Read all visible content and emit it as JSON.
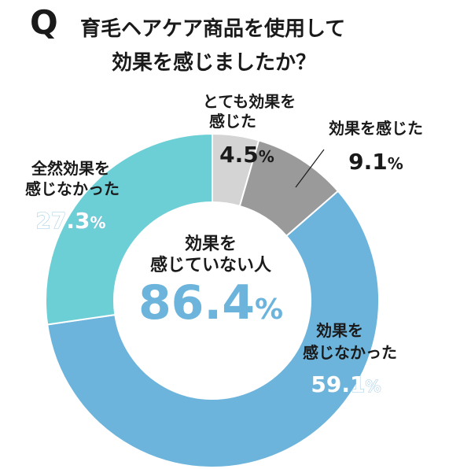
{
  "title": {
    "q": "Q",
    "line1": "育毛ヘアケア商品を使用して",
    "line2": "効果を感じましたか？"
  },
  "colors": {
    "very_effective": "#d4d4d4",
    "effective": "#9a9a9a",
    "not_effective": "#6cb4dc",
    "not_at_all": "#6dcfd6",
    "center_text": "#6cb4dc"
  },
  "chart_data": {
    "type": "pie",
    "donut": true,
    "slices": [
      {
        "label_lines": [
          "とても効果を",
          "感じた"
        ],
        "value": 4.5,
        "display": "4.5",
        "unit": "%",
        "color": "#d4d4d4"
      },
      {
        "label_lines": [
          "効果を感じた"
        ],
        "value": 9.1,
        "display": "9.1",
        "unit": "%",
        "color": "#9a9a9a"
      },
      {
        "label_lines": [
          "効果を",
          "感じなかった"
        ],
        "value": 59.1,
        "display": "59.1",
        "unit": "%",
        "color": "#6cb4dc"
      },
      {
        "label_lines": [
          "全然効果を",
          "感じなかった"
        ],
        "value": 27.3,
        "display": "27.3",
        "unit": "%",
        "color": "#6dcfd6"
      }
    ],
    "center": {
      "lines": [
        "効果を",
        "感じていない人"
      ],
      "display": "86.4",
      "unit": "%"
    }
  }
}
